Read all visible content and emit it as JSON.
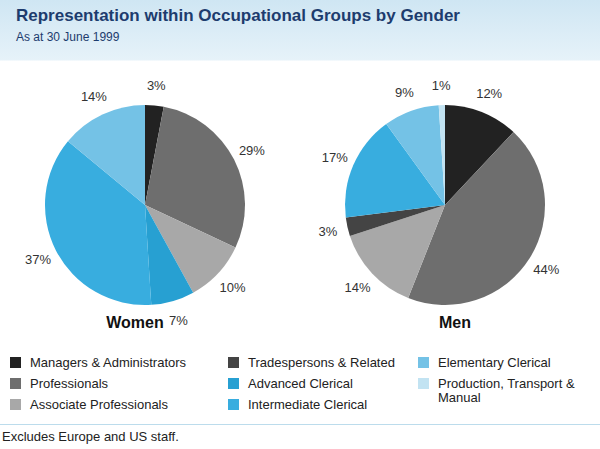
{
  "title": "Representation within Occupational Groups by Gender",
  "subtitle": "As at 30 June 1999",
  "footnote": "Excludes Europe and US staff.",
  "chart_data": [
    {
      "type": "pie",
      "title": "Women",
      "categories": [
        "Managers & Administrators",
        "Professionals",
        "Associate Professionals",
        "Tradespersons & Related",
        "Advanced Clerical",
        "Intermediate Clerical",
        "Elementary Clerical",
        "Production, Transport & Manual"
      ],
      "values": [
        3,
        29,
        10,
        0,
        7,
        37,
        14,
        0
      ],
      "value_labels": [
        "3%",
        "29%",
        "10%",
        null,
        "7%",
        "37%",
        "14%",
        null
      ],
      "colors": [
        "#222222",
        "#6e6e6e",
        "#a8a8a8",
        "#444444",
        "#27a0d2",
        "#38addf",
        "#74c2e6",
        "#c2e3f2"
      ],
      "data_labels": true
    },
    {
      "type": "pie",
      "title": "Men",
      "categories": [
        "Managers & Administrators",
        "Professionals",
        "Associate Professionals",
        "Tradespersons & Related",
        "Advanced Clerical",
        "Intermediate Clerical",
        "Elementary Clerical",
        "Production, Transport & Manual"
      ],
      "values": [
        12,
        44,
        14,
        3,
        0,
        17,
        9,
        1
      ],
      "value_labels": [
        "12%",
        "44%",
        "14%",
        "3%",
        null,
        "17%",
        "9%",
        "1%"
      ],
      "colors": [
        "#222222",
        "#6e6e6e",
        "#a8a8a8",
        "#444444",
        "#27a0d2",
        "#38addf",
        "#74c2e6",
        "#c2e3f2"
      ],
      "data_labels": true
    }
  ]
}
